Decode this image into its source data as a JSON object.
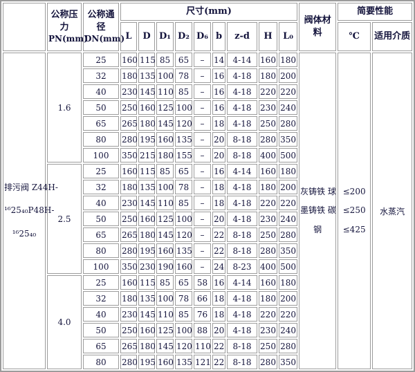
{
  "table": {
    "header": {
      "corner": "",
      "pressure_col": {
        "name": "公称压力",
        "unit": "PN(mm)"
      },
      "diameter_col": {
        "name": "公称通径",
        "unit": "DN(mm)"
      },
      "dims_group": "尺寸(mm)",
      "dim_cols": [
        "L",
        "D",
        "D₁",
        "D₂",
        "D₆",
        "b",
        "z-d",
        "H",
        "L₀"
      ],
      "material_col": "阀体材料",
      "performance_group": "简要性能",
      "temperature_col": "℃",
      "medium_col": "适用介质"
    },
    "product": {
      "lines": [
        "排污阀 Z44H-",
        "¹⁶25₄₀P48H-",
        "¹⁶25₄₀"
      ]
    },
    "sections": [
      {
        "pn": "1.6",
        "rows": [
          [
            "25",
            "160",
            "115",
            "85",
            "65",
            "–",
            "14",
            "4-14",
            "160",
            "180"
          ],
          [
            "32",
            "180",
            "135",
            "100",
            "78",
            "–",
            "16",
            "4-18",
            "180",
            "200"
          ],
          [
            "40",
            "230",
            "145",
            "110",
            "85",
            "–",
            "16",
            "4-18",
            "220",
            "220"
          ],
          [
            "50",
            "250",
            "160",
            "125",
            "100",
            "–",
            "16",
            "4-18",
            "230",
            "240"
          ],
          [
            "65",
            "265",
            "180",
            "145",
            "120",
            "–",
            "18",
            "4-18",
            "250",
            "280"
          ],
          [
            "80",
            "280",
            "195",
            "160",
            "135",
            "–",
            "20",
            "8-18",
            "280",
            "350"
          ],
          [
            "100",
            "350",
            "215",
            "180",
            "155",
            "–",
            "20",
            "8-18",
            "400",
            "500"
          ]
        ]
      },
      {
        "pn": "2.5",
        "rows": [
          [
            "25",
            "160",
            "115",
            "85",
            "65",
            "–",
            "16",
            "4-14",
            "160",
            "180"
          ],
          [
            "32",
            "180",
            "135",
            "100",
            "78",
            "–",
            "18",
            "4-18",
            "180",
            "200"
          ],
          [
            "40",
            "230",
            "145",
            "110",
            "85",
            "–",
            "18",
            "4-18",
            "220",
            "220"
          ],
          [
            "50",
            "250",
            "160",
            "125",
            "100",
            "–",
            "20",
            "4-18",
            "230",
            "240"
          ],
          [
            "65",
            "265",
            "180",
            "145",
            "120",
            "–",
            "22",
            "8-18",
            "250",
            "280"
          ],
          [
            "80",
            "280",
            "195",
            "160",
            "135",
            "–",
            "22",
            "8-18",
            "280",
            "350"
          ],
          [
            "100",
            "350",
            "230",
            "190",
            "160",
            "–",
            "24",
            "8-23",
            "400",
            "500"
          ]
        ]
      },
      {
        "pn": "4.0",
        "rows": [
          [
            "25",
            "160",
            "115",
            "85",
            "65",
            "58",
            "16",
            "4-14",
            "160",
            "180"
          ],
          [
            "32",
            "180",
            "135",
            "100",
            "78",
            "66",
            "18",
            "4-18",
            "180",
            "200"
          ],
          [
            "40",
            "230",
            "145",
            "110",
            "85",
            "76",
            "18",
            "4-18",
            "220",
            "220"
          ],
          [
            "50",
            "250",
            "160",
            "125",
            "100",
            "88",
            "20",
            "4-18",
            "230",
            "240"
          ],
          [
            "65",
            "265",
            "180",
            "145",
            "120",
            "110",
            "22",
            "8-18",
            "250",
            "280"
          ],
          [
            "80",
            "280",
            "195",
            "160",
            "135",
            "121",
            "22",
            "8-18",
            "280",
            "350"
          ]
        ]
      }
    ],
    "material_lines": [
      "灰铸铁 球",
      "墨铸铁 碳",
      "钢"
    ],
    "temperature_lines": [
      "≤200",
      "≤250",
      "≤425"
    ],
    "medium": "水蒸汽"
  },
  "colors": {
    "border": "#9b9b9b",
    "text": "#14143c",
    "background": "#ffffff"
  }
}
